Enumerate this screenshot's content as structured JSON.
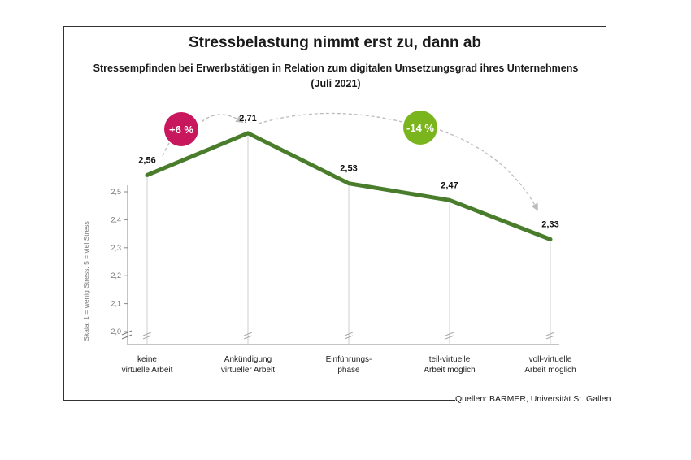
{
  "chart_data": {
    "type": "line",
    "title": "Stressbelastung nimmt erst zu, dann ab",
    "subtitle_line1": "Stressempfinden bei Erwerbstätigen in Relation zum digitalen Umsetzungsgrad ihres Unternehmens",
    "subtitle_line2": "(Juli 2021)",
    "ylabel": "Skala: 1 = wenig Stress, 5 = viel Stress",
    "ylim": [
      2.0,
      2.5
    ],
    "yticks": [
      {
        "value": 2.0,
        "label": "2,0"
      },
      {
        "value": 2.1,
        "label": "2,1"
      },
      {
        "value": 2.2,
        "label": "2,2"
      },
      {
        "value": 2.3,
        "label": "2,3"
      },
      {
        "value": 2.4,
        "label": "2,4"
      },
      {
        "value": 2.5,
        "label": "2,5"
      }
    ],
    "y_axis_break": true,
    "grid": false,
    "categories": [
      [
        "keine",
        "virtuelle Arbeit"
      ],
      [
        "Ankündigung",
        "virtueller Arbeit"
      ],
      [
        "Einführungs-",
        "phase"
      ],
      [
        "teil-virtuelle",
        "Arbeit möglich"
      ],
      [
        "voll-virtuelle",
        "Arbeit möglich"
      ]
    ],
    "values": [
      2.56,
      2.71,
      2.53,
      2.47,
      2.33
    ],
    "value_labels": [
      "2,56",
      "2,71",
      "2,53",
      "2,47",
      "2,33"
    ],
    "line_color": "#4a7d2b",
    "annotations": [
      {
        "text": "+6 %",
        "from": 0,
        "to": 1,
        "color": "#c8175d"
      },
      {
        "text": "-14 %",
        "from": 1,
        "to": 4,
        "color": "#7ab51d"
      }
    ],
    "source": "Quellen: BARMER, Universität St. Gallen"
  }
}
